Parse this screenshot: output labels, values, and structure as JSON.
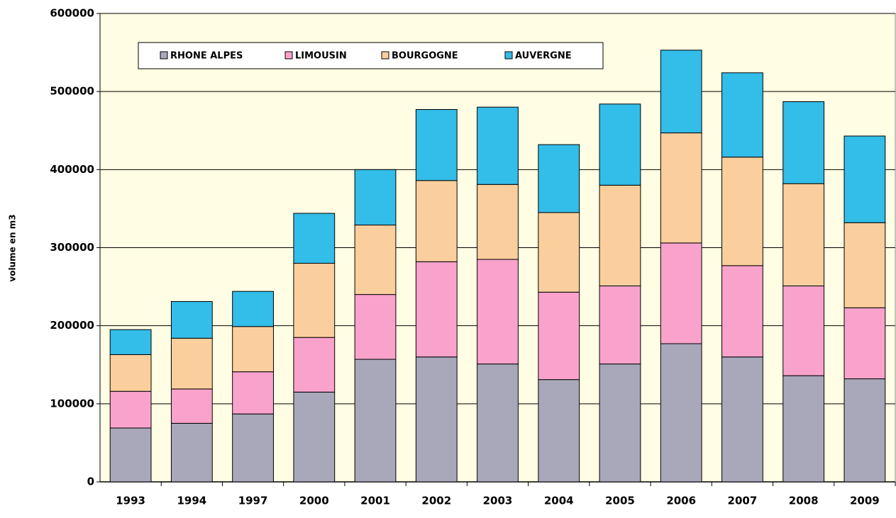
{
  "chart_data": {
    "type": "stacked_bar",
    "y_label": "volume en m3",
    "categories": [
      "1993",
      "1994",
      "1997",
      "2000",
      "2001",
      "2002",
      "2003",
      "2004",
      "2005",
      "2006",
      "2007",
      "2008",
      "2009"
    ],
    "series": [
      {
        "name": "RHONE ALPES",
        "color": "#a9a8bb",
        "values": [
          69000,
          75000,
          87000,
          115000,
          157000,
          160000,
          151000,
          131000,
          151000,
          177000,
          160000,
          136000,
          132000
        ]
      },
      {
        "name": "LIMOUSIN",
        "color": "#f9a3cc",
        "values": [
          47000,
          44000,
          54000,
          70000,
          83000,
          122000,
          134000,
          112000,
          100000,
          129000,
          117000,
          115000,
          91000
        ]
      },
      {
        "name": "BOURGOGNE",
        "color": "#fbcf9d",
        "values": [
          47000,
          65000,
          58000,
          95000,
          89000,
          104000,
          96000,
          102000,
          129000,
          141000,
          139000,
          131000,
          109000
        ]
      },
      {
        "name": "AUVERGNE",
        "color": "#33bde9",
        "values": [
          32000,
          47000,
          45000,
          64000,
          71000,
          91000,
          99000,
          87000,
          104000,
          106000,
          108000,
          105000,
          111000
        ]
      }
    ],
    "ylim": [
      0,
      600000
    ],
    "yticks": [
      0,
      100000,
      200000,
      300000,
      400000,
      500000,
      600000
    ],
    "grid": true
  }
}
